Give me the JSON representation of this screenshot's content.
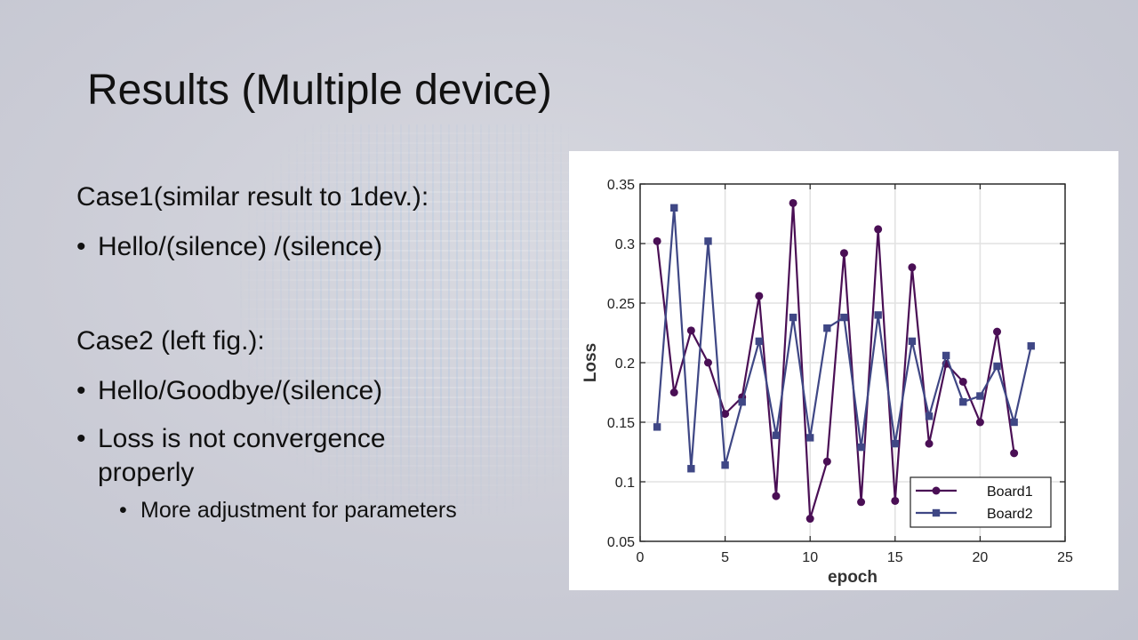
{
  "slide": {
    "title": "Results (Multiple device)",
    "case1": {
      "heading": "Case1(similar result to 1dev.):",
      "bullets": [
        "Hello/(silence) /(silence)"
      ]
    },
    "case2": {
      "heading": "Case2 (left fig.):",
      "bullets": [
        "Hello/Goodbye/(silence)",
        "Loss is not convergence properly"
      ],
      "sub_bullets": [
        "More adjustment for parameters"
      ]
    },
    "bullet_char": "•"
  },
  "chart_data": {
    "type": "line",
    "xlabel": "epoch",
    "ylabel": "Loss",
    "xlim": [
      0,
      25
    ],
    "ylim": [
      0.05,
      0.35
    ],
    "xticks": [
      0,
      5,
      10,
      15,
      20,
      25
    ],
    "yticks": [
      0.05,
      0.1,
      0.15,
      0.2,
      0.25,
      0.3,
      0.35
    ],
    "grid": true,
    "legend_position": "bottom-right",
    "series": [
      {
        "name": "Board1",
        "color": "#4a0f55",
        "marker": "circle",
        "x": [
          1,
          2,
          3,
          4,
          5,
          6,
          7,
          8,
          9,
          10,
          11,
          12,
          13,
          14,
          15,
          16,
          17,
          18,
          19,
          20,
          21,
          22
        ],
        "y": [
          0.302,
          0.175,
          0.227,
          0.2,
          0.157,
          0.171,
          0.256,
          0.088,
          0.334,
          0.069,
          0.117,
          0.292,
          0.083,
          0.312,
          0.084,
          0.28,
          0.132,
          0.199,
          0.184,
          0.15,
          0.226,
          0.124
        ]
      },
      {
        "name": "Board2",
        "color": "#3f4785",
        "marker": "square",
        "x": [
          1,
          2,
          3,
          4,
          5,
          6,
          7,
          8,
          9,
          10,
          11,
          12,
          13,
          14,
          15,
          16,
          17,
          18,
          19,
          20,
          21,
          22,
          23
        ],
        "y": [
          0.146,
          0.33,
          0.111,
          0.302,
          0.114,
          0.167,
          0.218,
          0.139,
          0.238,
          0.137,
          0.229,
          0.238,
          0.129,
          0.24,
          0.132,
          0.218,
          0.155,
          0.206,
          0.167,
          0.172,
          0.197,
          0.15,
          0.214
        ]
      }
    ]
  }
}
